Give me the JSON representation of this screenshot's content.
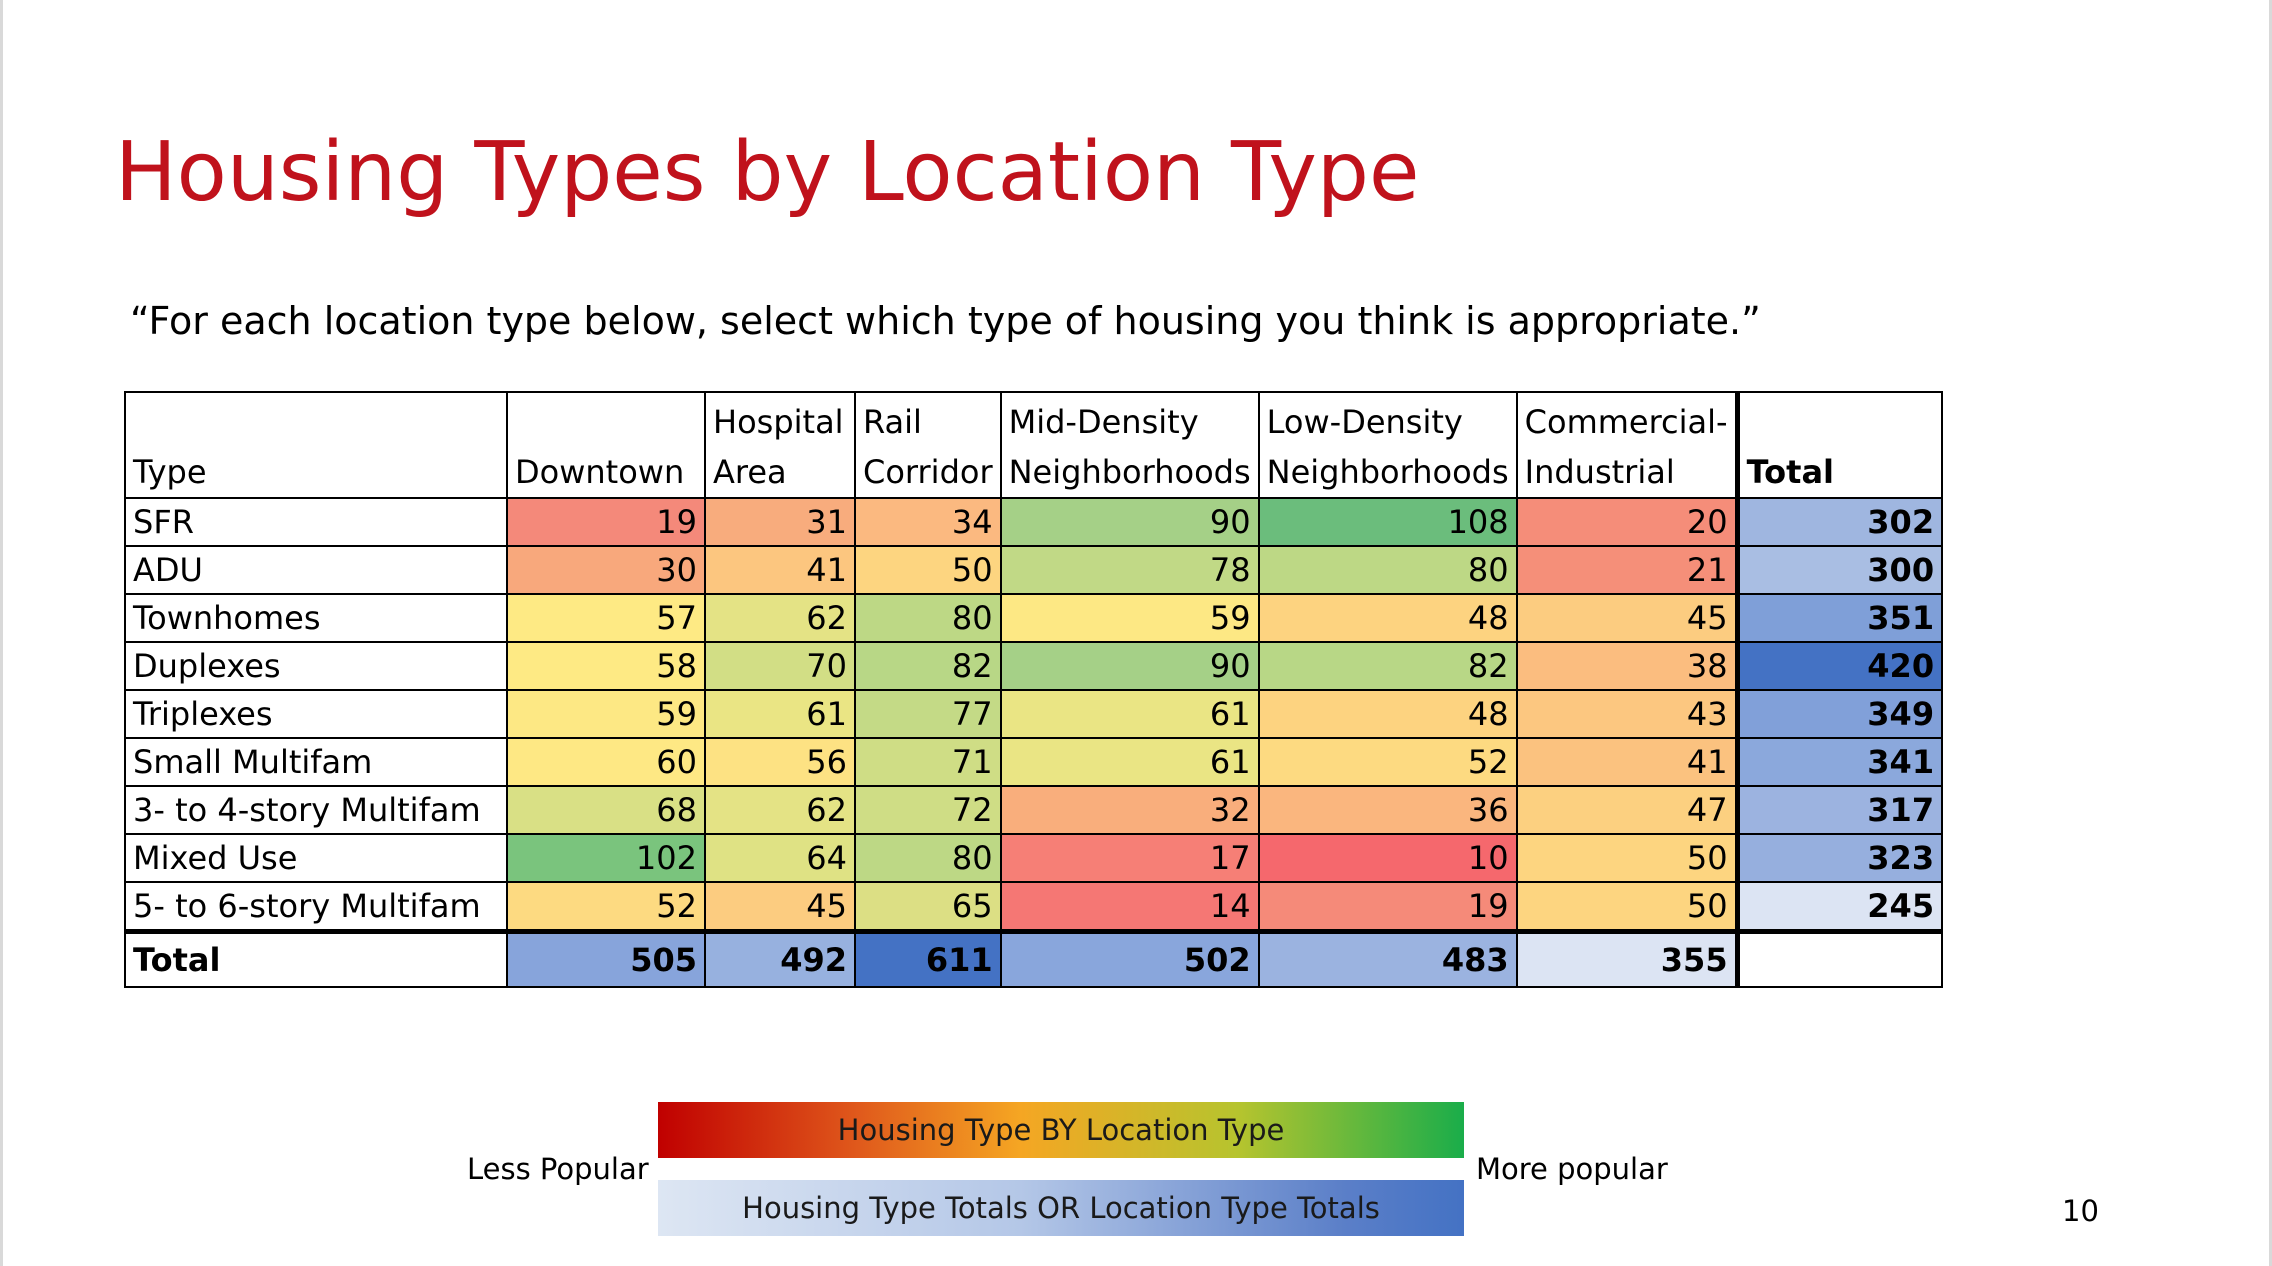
{
  "slide": {
    "title": "Housing Types by Location Type",
    "question": "“For each location type below, select which type of housing you think is appropriate.”",
    "page_number": "10"
  },
  "table": {
    "headers": [
      [
        "Type"
      ],
      [
        "Downtown"
      ],
      [
        "Hospital",
        "Area"
      ],
      [
        "Rail",
        "Corridor"
      ],
      [
        "Mid-Density",
        "Neighborhoods"
      ],
      [
        "Low-Density",
        "Neighborhoods"
      ],
      [
        "Commercial-",
        "Industrial"
      ],
      [
        "Total"
      ]
    ],
    "rows": [
      {
        "label": "SFR",
        "values": [
          "19",
          "31",
          "34",
          "90",
          "108",
          "20"
        ],
        "total": "302",
        "colors": [
          "#f4897a",
          "#f8ac7d",
          "#fbb980",
          "#a5d087",
          "#6bbd7c",
          "#f58d79"
        ],
        "total_color": "#9fb6e0"
      },
      {
        "label": "ADU",
        "values": [
          "30",
          "41",
          "50",
          "78",
          "80",
          "21"
        ],
        "total": "300",
        "colors": [
          "#f8a87c",
          "#fcc67f",
          "#fdd580",
          "#c1d986",
          "#bdd885",
          "#f58f79"
        ],
        "total_color": "#a9bee3"
      },
      {
        "label": "Townhomes",
        "values": [
          "57",
          "62",
          "80",
          "59",
          "48",
          "45"
        ],
        "total": "351",
        "colors": [
          "#feea84",
          "#e4e385",
          "#bdd885",
          "#fde884",
          "#fdd380",
          "#fccc80"
        ],
        "total_color": "#7f9fd8"
      },
      {
        "label": "Duplexes",
        "values": [
          "58",
          "70",
          "82",
          "90",
          "82",
          "38"
        ],
        "total": "420",
        "colors": [
          "#feea84",
          "#d2de85",
          "#b8d786",
          "#a5d087",
          "#b8d786",
          "#fbbd7f"
        ],
        "total_color": "#4472c4"
      },
      {
        "label": "Triplexes",
        "values": [
          "59",
          "61",
          "77",
          "61",
          "48",
          "43"
        ],
        "total": "349",
        "colors": [
          "#fde884",
          "#eae584",
          "#c4da86",
          "#eae584",
          "#fdd380",
          "#fcc780"
        ],
        "total_color": "#81a0d9"
      },
      {
        "label": "Small Multifam",
        "values": [
          "60",
          "56",
          "71",
          "61",
          "52",
          "41"
        ],
        "total": "341",
        "colors": [
          "#fee884",
          "#fde283",
          "#cfdd85",
          "#eae584",
          "#fdda81",
          "#fbc27f"
        ],
        "total_color": "#8ba8dc"
      },
      {
        "label": "3- to 4-story Multifam",
        "values": [
          "68",
          "62",
          "72",
          "32",
          "36",
          "47"
        ],
        "total": "317",
        "colors": [
          "#d9e085",
          "#e4e385",
          "#cfdd85",
          "#f9ae7c",
          "#fab67e",
          "#fcd080"
        ],
        "total_color": "#9cb3e0"
      },
      {
        "label": "Mixed Use",
        "values": [
          "102",
          "64",
          "80",
          "17",
          "10",
          "50"
        ],
        "total": "323",
        "colors": [
          "#7ac47d",
          "#dfe284",
          "#bdd885",
          "#f67f76",
          "#f5686d",
          "#fdd580"
        ],
        "total_color": "#96afde"
      },
      {
        "label": "5- to 6-story Multifam",
        "values": [
          "52",
          "45",
          "65",
          "14",
          "19",
          "50"
        ],
        "total": "245",
        "colors": [
          "#fdda81",
          "#fccc80",
          "#dcdf84",
          "#f57774",
          "#f58a79",
          "#fdd580"
        ],
        "total_color": "#dce4f3"
      }
    ],
    "footer": {
      "label": "Total",
      "values": [
        "505",
        "492",
        "611",
        "502",
        "483",
        "355"
      ],
      "colors": [
        "#87a4db",
        "#97b1df",
        "#4472c4",
        "#89a6dc",
        "#9bb3e0",
        "#dce4f3"
      ]
    }
  },
  "legend": {
    "heat_label": "Housing Type BY Location Type",
    "totals_label": "Housing Type Totals OR Location Type Totals",
    "less": "Less Popular",
    "more": "More popular"
  }
}
